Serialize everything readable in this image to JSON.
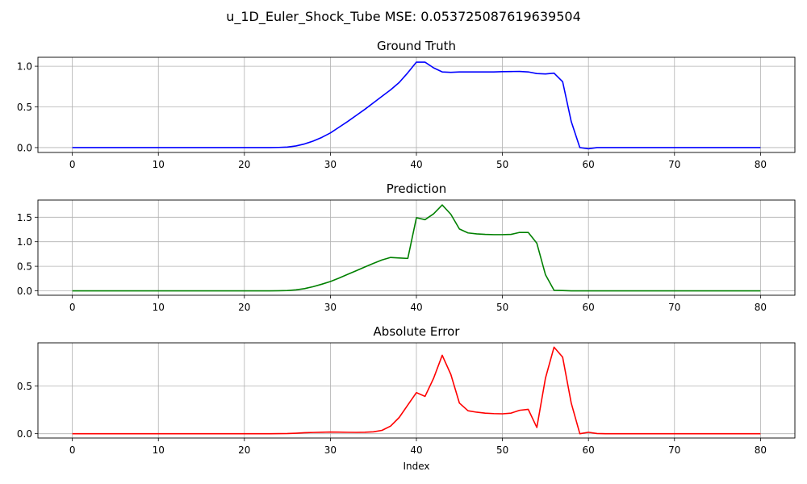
{
  "suptitle": "u_1D_Euler_Shock_Tube MSE: 0.053725087619639504",
  "chart_data": [
    {
      "type": "line",
      "title": "Ground Truth",
      "xlabel": "",
      "ylabel": "",
      "xlim": [
        -4,
        84
      ],
      "ylim": [
        -0.06,
        1.11
      ],
      "xticks": [
        0,
        10,
        20,
        30,
        40,
        50,
        60,
        70,
        80
      ],
      "yticks": [
        0.0,
        0.5,
        1.0
      ],
      "ytick_labels": [
        "0.0",
        "0.5",
        "1.0"
      ],
      "grid": true,
      "color": "#0000ff",
      "x": [
        0,
        1,
        2,
        3,
        4,
        5,
        6,
        7,
        8,
        9,
        10,
        11,
        12,
        13,
        14,
        15,
        16,
        17,
        18,
        19,
        20,
        21,
        22,
        23,
        24,
        25,
        26,
        27,
        28,
        29,
        30,
        31,
        32,
        33,
        34,
        35,
        36,
        37,
        38,
        39,
        40,
        41,
        42,
        43,
        44,
        45,
        46,
        47,
        48,
        49,
        50,
        51,
        52,
        53,
        54,
        55,
        56,
        57,
        58,
        59,
        60,
        61,
        62,
        63,
        64,
        65,
        66,
        67,
        68,
        69,
        70,
        71,
        72,
        73,
        74,
        75,
        76,
        77,
        78,
        79,
        80
      ],
      "y": [
        0,
        0,
        0,
        0,
        0,
        0,
        0,
        0,
        0,
        0,
        0,
        0,
        0,
        0,
        0,
        0,
        0,
        0,
        0,
        0,
        0,
        0,
        0,
        0,
        0.002,
        0.006,
        0.02,
        0.045,
        0.08,
        0.125,
        0.18,
        0.25,
        0.32,
        0.395,
        0.47,
        0.55,
        0.63,
        0.71,
        0.8,
        0.92,
        1.05,
        1.05,
        0.98,
        0.93,
        0.925,
        0.93,
        0.93,
        0.93,
        0.93,
        0.93,
        0.933,
        0.935,
        0.936,
        0.93,
        0.91,
        0.905,
        0.915,
        0.81,
        0.32,
        0.0,
        -0.015,
        0,
        0,
        0,
        0,
        0,
        0,
        0,
        0,
        0,
        0,
        0,
        0,
        0,
        0,
        0,
        0,
        0,
        0,
        0,
        0
      ]
    },
    {
      "type": "line",
      "title": "Prediction",
      "xlabel": "",
      "ylabel": "",
      "xlim": [
        -4,
        84
      ],
      "ylim": [
        -0.09,
        1.85
      ],
      "xticks": [
        0,
        10,
        20,
        30,
        40,
        50,
        60,
        70,
        80
      ],
      "yticks": [
        0.0,
        0.5,
        1.0,
        1.5
      ],
      "ytick_labels": [
        "0.0",
        "0.5",
        "1.0",
        "1.5"
      ],
      "grid": true,
      "color": "#008000",
      "x": [
        0,
        1,
        2,
        3,
        4,
        5,
        6,
        7,
        8,
        9,
        10,
        11,
        12,
        13,
        14,
        15,
        16,
        17,
        18,
        19,
        20,
        21,
        22,
        23,
        24,
        25,
        26,
        27,
        28,
        29,
        30,
        31,
        32,
        33,
        34,
        35,
        36,
        37,
        38,
        39,
        40,
        41,
        42,
        43,
        44,
        45,
        46,
        47,
        48,
        49,
        50,
        51,
        52,
        53,
        54,
        55,
        56,
        57,
        58,
        59,
        60,
        61,
        62,
        63,
        64,
        65,
        66,
        67,
        68,
        69,
        70,
        71,
        72,
        73,
        74,
        75,
        76,
        77,
        78,
        79,
        80
      ],
      "y": [
        0,
        0,
        0,
        0,
        0,
        0,
        0,
        0,
        0,
        0,
        0,
        0,
        0,
        0,
        0,
        0,
        0,
        0,
        0,
        0,
        0,
        0,
        0,
        0,
        0.002,
        0.006,
        0.02,
        0.045,
        0.085,
        0.135,
        0.19,
        0.26,
        0.335,
        0.41,
        0.485,
        0.56,
        0.63,
        0.68,
        0.67,
        0.66,
        1.49,
        1.45,
        1.57,
        1.75,
        1.56,
        1.26,
        1.18,
        1.16,
        1.15,
        1.145,
        1.145,
        1.15,
        1.19,
        1.19,
        0.97,
        0.33,
        0.01,
        0.005,
        0,
        0,
        0,
        0,
        0,
        0,
        0,
        0,
        0,
        0,
        0,
        0,
        0,
        0,
        0,
        0,
        0,
        0,
        0,
        0,
        0,
        0,
        0
      ]
    },
    {
      "type": "line",
      "title": "Absolute Error",
      "xlabel": "Index",
      "ylabel": "",
      "xlim": [
        -4,
        84
      ],
      "ylim": [
        -0.045,
        0.95
      ],
      "xticks": [
        0,
        10,
        20,
        30,
        40,
        50,
        60,
        70,
        80
      ],
      "yticks": [
        0.0,
        0.5
      ],
      "ytick_labels": [
        "0.0",
        "0.5"
      ],
      "grid": true,
      "color": "#ff0000",
      "x": [
        0,
        1,
        2,
        3,
        4,
        5,
        6,
        7,
        8,
        9,
        10,
        11,
        12,
        13,
        14,
        15,
        16,
        17,
        18,
        19,
        20,
        21,
        22,
        23,
        24,
        25,
        26,
        27,
        28,
        29,
        30,
        31,
        32,
        33,
        34,
        35,
        36,
        37,
        38,
        39,
        40,
        41,
        42,
        43,
        44,
        45,
        46,
        47,
        48,
        49,
        50,
        51,
        52,
        53,
        54,
        55,
        56,
        57,
        58,
        59,
        60,
        61,
        62,
        63,
        64,
        65,
        66,
        67,
        68,
        69,
        70,
        71,
        72,
        73,
        74,
        75,
        76,
        77,
        78,
        79,
        80
      ],
      "y": [
        0,
        0,
        0,
        0,
        0,
        0,
        0,
        0,
        0,
        0,
        0,
        0,
        0,
        0,
        0,
        0,
        0,
        0,
        0,
        0,
        0,
        0,
        0,
        0,
        0.001,
        0.002,
        0.005,
        0.01,
        0.013,
        0.016,
        0.018,
        0.017,
        0.015,
        0.014,
        0.016,
        0.02,
        0.035,
        0.08,
        0.17,
        0.3,
        0.43,
        0.39,
        0.58,
        0.82,
        0.62,
        0.32,
        0.24,
        0.225,
        0.215,
        0.21,
        0.208,
        0.215,
        0.245,
        0.255,
        0.065,
        0.58,
        0.905,
        0.8,
        0.32,
        0.0,
        0.015,
        0.002,
        0,
        0,
        0,
        0,
        0,
        0,
        0,
        0,
        0,
        0,
        0,
        0,
        0,
        0,
        0,
        0,
        0,
        0,
        0
      ]
    }
  ]
}
